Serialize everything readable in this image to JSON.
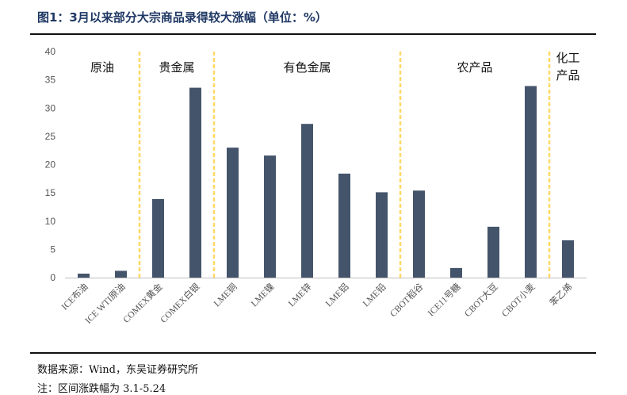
{
  "title": "图1：3月以来部分大宗商品录得较大涨幅（单位：%）",
  "footer": {
    "source": "数据来源：Wind，东吴证券研究所",
    "note": "注：区间涨跌幅为 3.1-5.24"
  },
  "colors": {
    "bar": "#44546a",
    "divider": "#ffd966",
    "axis": "#bfbfbf"
  },
  "chart_data": {
    "type": "bar",
    "title": "图1：3月以来部分大宗商品录得较大涨幅（单位：%）",
    "categories": [
      "ICE布油",
      "ICE WTI原油",
      "COMEX黄金",
      "COMEX白银",
      "LME铜",
      "LME镍",
      "LME锌",
      "LME铝",
      "LME铅",
      "CBOT稻谷",
      "ICE11号糖",
      "CBOT大豆",
      "CBOT小麦",
      "苯乙烯"
    ],
    "values": [
      0.7,
      1.2,
      13.9,
      33.6,
      23.0,
      21.6,
      27.2,
      18.4,
      15.1,
      15.4,
      1.7,
      9.0,
      33.9,
      6.6
    ],
    "ylim": [
      0,
      40
    ],
    "yticks": [
      0,
      5,
      10,
      15,
      20,
      25,
      30,
      35,
      40
    ],
    "xlabel": "",
    "ylabel": "",
    "grid": false,
    "groups": [
      {
        "label": "原油",
        "start": 0,
        "end": 1
      },
      {
        "label": "贵金属",
        "start": 2,
        "end": 3
      },
      {
        "label": "有色金属",
        "start": 4,
        "end": 8
      },
      {
        "label": "农产品",
        "start": 9,
        "end": 12
      },
      {
        "label": "化工产品",
        "start": 13,
        "end": 13
      }
    ]
  }
}
